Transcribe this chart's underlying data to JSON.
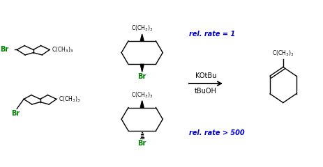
{
  "bg_color": "#ffffff",
  "black": "#000000",
  "green": "#008000",
  "blue": "#0000cc",
  "reagent1": "KOtBu",
  "reagent2": "tBuOH",
  "rate1": "rel. rate = 1",
  "rate2": "rel. rate > 500"
}
